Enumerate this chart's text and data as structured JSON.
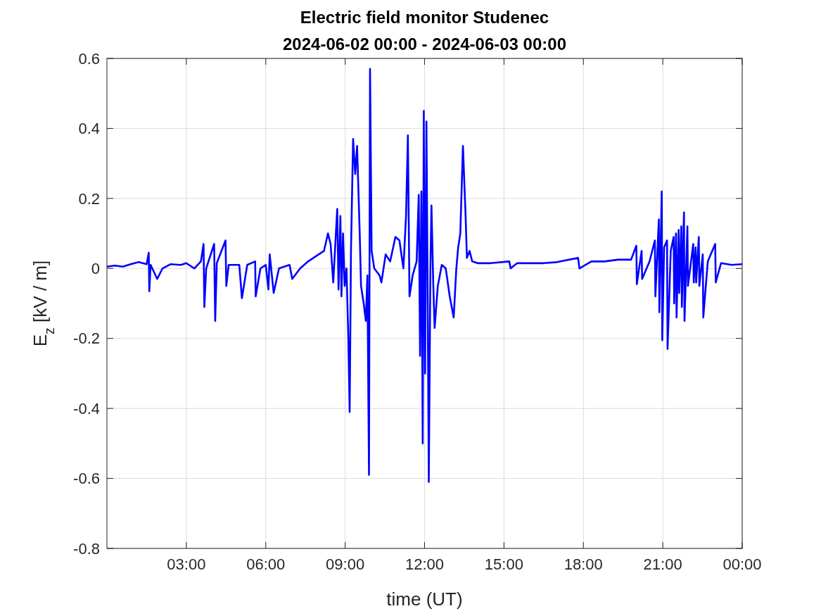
{
  "chart_data": {
    "type": "line",
    "title": "Electric field monitor Studenec",
    "subtitle": "2024-06-02 00:00 - 2024-06-03 00:00",
    "xlabel": "time (UT)",
    "ylabel": "E$_{z}$ [kV / m]",
    "x": [
      0,
      0.3,
      0.6,
      0.9,
      1.2,
      1.5,
      1.58,
      1.6,
      1.65,
      1.9,
      2.1,
      2.4,
      2.8,
      3.0,
      3.3,
      3.55,
      3.65,
      3.68,
      3.75,
      4.05,
      4.09,
      4.15,
      4.48,
      4.51,
      4.6,
      5.0,
      5.1,
      5.3,
      5.6,
      5.62,
      5.8,
      6.0,
      6.1,
      6.15,
      6.3,
      6.5,
      6.9,
      7.0,
      7.3,
      7.6,
      7.8,
      8.0,
      8.2,
      8.35,
      8.45,
      8.55,
      8.7,
      8.75,
      8.82,
      8.86,
      8.92,
      8.98,
      9.05,
      9.12,
      9.17,
      9.22,
      9.3,
      9.38,
      9.45,
      9.55,
      9.6,
      9.7,
      9.78,
      9.84,
      9.9,
      9.94,
      10.0,
      10.1,
      10.3,
      10.37,
      10.53,
      10.7,
      10.9,
      11.05,
      11.2,
      11.3,
      11.37,
      11.43,
      11.55,
      11.7,
      11.78,
      11.83,
      11.88,
      11.93,
      11.97,
      12.02,
      12.07,
      12.12,
      12.16,
      12.22,
      12.26,
      12.33,
      12.38,
      12.5,
      12.65,
      12.8,
      12.95,
      13.1,
      13.2,
      13.27,
      13.35,
      13.45,
      13.55,
      13.6,
      13.7,
      13.8,
      14.0,
      14.5,
      15.2,
      15.25,
      15.5,
      16,
      16.5,
      17,
      17.8,
      17.85,
      18.3,
      18.8,
      19.3,
      19.8,
      20.0,
      20.02,
      20.2,
      20.22,
      20.5,
      20.7,
      20.72,
      20.85,
      20.87,
      20.96,
      20.98,
      21.05,
      21.16,
      21.18,
      21.3,
      21.41,
      21.43,
      21.5,
      21.52,
      21.6,
      21.62,
      21.7,
      21.72,
      21.8,
      21.82,
      21.93,
      21.95,
      22.15,
      22.17,
      22.24,
      22.26,
      22.36,
      22.38,
      22.51,
      22.53,
      22.7,
      22.98,
      23.0,
      23.2,
      23.6,
      24
    ],
    "series": [
      {
        "color": "#0000ff",
        "values": [
          0.005,
          0.008,
          0.005,
          0.012,
          0.018,
          0.012,
          0.045,
          -0.065,
          0.01,
          -0.03,
          0.0,
          0.012,
          0.01,
          0.015,
          0.0,
          0.02,
          0.07,
          -0.11,
          0.0,
          0.07,
          -0.15,
          0.015,
          0.08,
          -0.05,
          0.01,
          0.01,
          -0.085,
          0.01,
          0.02,
          -0.08,
          0.0,
          0.01,
          -0.06,
          0.04,
          -0.07,
          0.0,
          0.01,
          -0.03,
          0.0,
          0.02,
          0.03,
          0.04,
          0.05,
          0.1,
          0.07,
          -0.04,
          0.17,
          -0.06,
          0.15,
          -0.08,
          0.1,
          -0.05,
          0.0,
          -0.2,
          -0.41,
          0.05,
          0.37,
          0.27,
          0.35,
          0.1,
          -0.05,
          -0.1,
          -0.15,
          -0.02,
          -0.59,
          0.57,
          0.05,
          0.0,
          -0.02,
          -0.04,
          0.04,
          0.02,
          0.09,
          0.08,
          0.0,
          0.15,
          0.38,
          -0.08,
          -0.02,
          0.02,
          0.21,
          -0.25,
          0.22,
          -0.5,
          0.45,
          -0.3,
          0.42,
          -0.1,
          -0.61,
          0.0,
          0.18,
          -0.05,
          -0.17,
          -0.05,
          0.01,
          0.0,
          -0.08,
          -0.14,
          0.0,
          0.06,
          0.1,
          0.35,
          0.15,
          0.03,
          0.05,
          0.02,
          0.015,
          0.015,
          0.02,
          0.0,
          0.015,
          0.015,
          0.015,
          0.018,
          0.03,
          0.0,
          0.02,
          0.02,
          0.025,
          0.025,
          0.065,
          -0.045,
          0.05,
          -0.03,
          0.02,
          0.08,
          -0.08,
          0.14,
          -0.125,
          0.22,
          -0.205,
          0.06,
          0.08,
          -0.23,
          0.05,
          0.09,
          -0.1,
          0.1,
          -0.14,
          0.11,
          -0.07,
          0.12,
          -0.11,
          0.16,
          -0.15,
          0.12,
          -0.05,
          0.07,
          -0.04,
          0.06,
          -0.04,
          0.09,
          -0.05,
          0.04,
          -0.14,
          0.02,
          0.07,
          -0.04,
          0.015,
          0.01,
          0.012
        ]
      }
    ],
    "xlim": [
      0,
      24
    ],
    "xticks": [
      {
        "value": 3,
        "label": "03:00"
      },
      {
        "value": 6,
        "label": "06:00"
      },
      {
        "value": 9,
        "label": "09:00"
      },
      {
        "value": 12,
        "label": "12:00"
      },
      {
        "value": 15,
        "label": "15:00"
      },
      {
        "value": 18,
        "label": "18:00"
      },
      {
        "value": 21,
        "label": "21:00"
      },
      {
        "value": 24,
        "label": "00:00"
      }
    ],
    "ylim": [
      -0.8,
      0.6
    ],
    "yticks": [
      {
        "value": -0.8,
        "label": "-0.8"
      },
      {
        "value": -0.6,
        "label": "-0.6"
      },
      {
        "value": -0.4,
        "label": "-0.4"
      },
      {
        "value": -0.2,
        "label": "-0.2"
      },
      {
        "value": 0,
        "label": "0"
      },
      {
        "value": 0.2,
        "label": "0.2"
      },
      {
        "value": 0.4,
        "label": "0.4"
      },
      {
        "value": 0.6,
        "label": "0.6"
      }
    ],
    "grid": true,
    "marker": "none",
    "line_style": "solid"
  }
}
